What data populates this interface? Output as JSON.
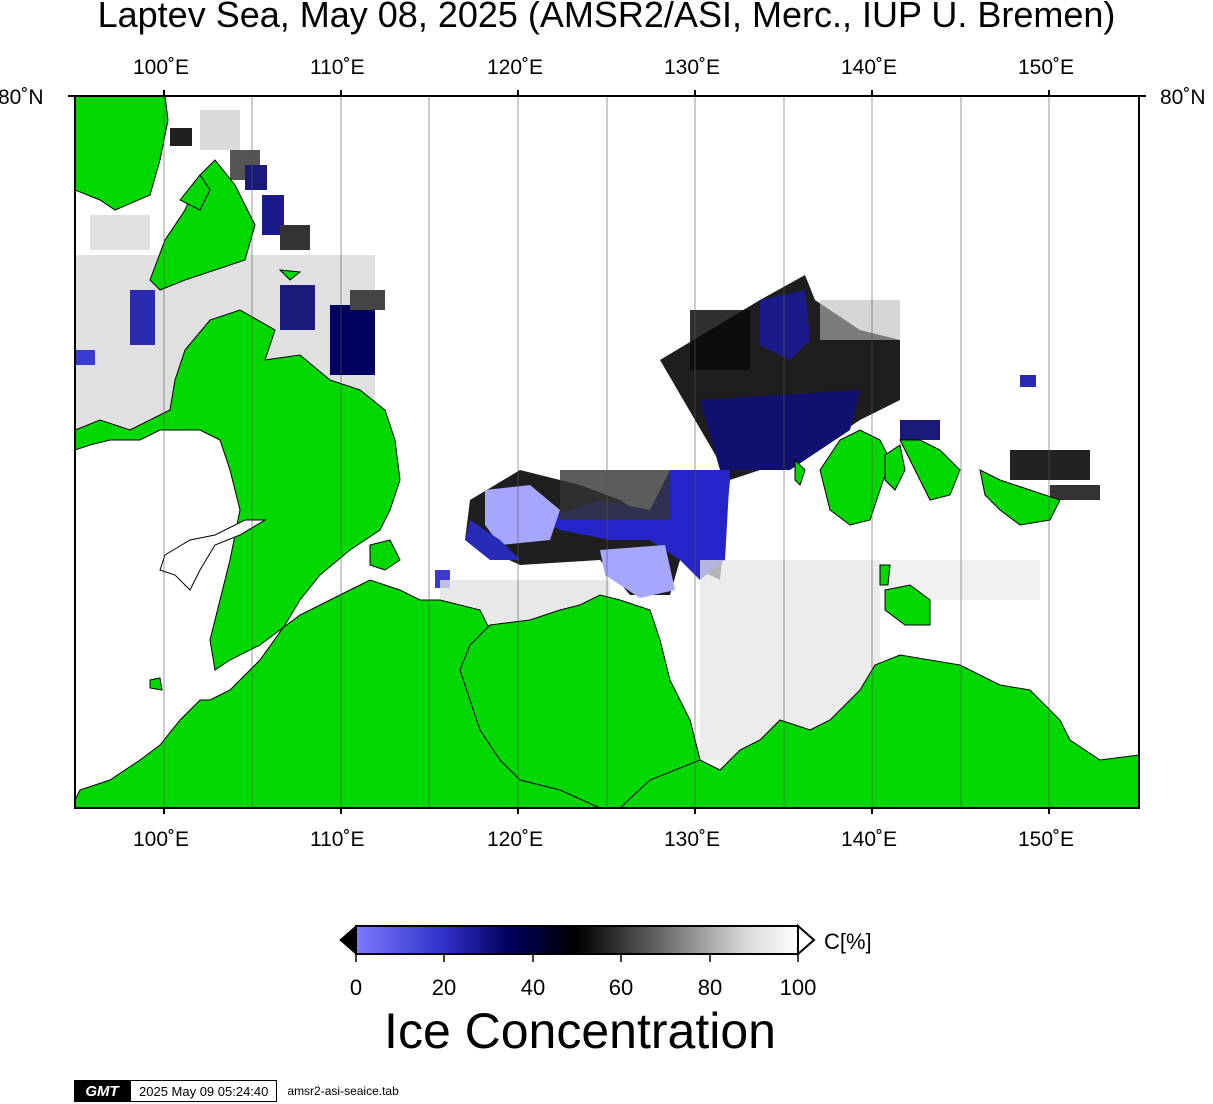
{
  "title": "Laptev Sea, May 08, 2025 (AMSR2/ASI, Merc., IUP U. Bremen)",
  "lon_labels": [
    "100˚E",
    "110˚E",
    "120˚E",
    "130˚E",
    "140˚E",
    "150˚E"
  ],
  "lat_label": "80˚N",
  "colors": {
    "land": "#00d800",
    "ice_low": "#7a7aff",
    "ice_mid": "#00005a",
    "ice_high": "#ffffff",
    "frame": "#000000"
  },
  "colorbar": {
    "ticks": [
      "0",
      "20",
      "40",
      "60",
      "80",
      "100"
    ],
    "unit": "C[%]",
    "title": "Ice Concentration"
  },
  "footer": {
    "logo": "GMT",
    "timestamp": "2025 May 09 05:24:40",
    "filename": "amsr2-asi-seaice.tab"
  }
}
